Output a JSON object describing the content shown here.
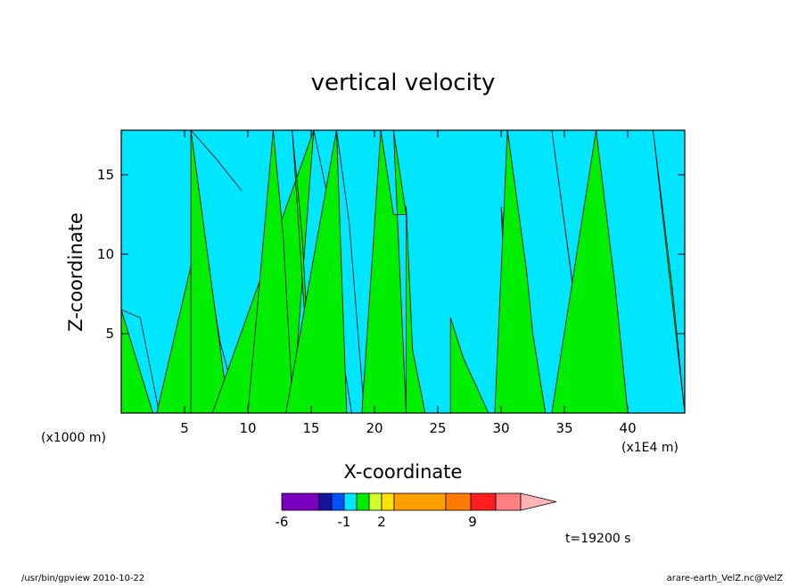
{
  "chart_data": {
    "type": "heatmap",
    "title": "vertical velocity",
    "xlabel": "X-coordinate",
    "ylabel": "Z-coordinate",
    "xlim": [
      0,
      44.5
    ],
    "ylim": [
      0,
      17.8
    ],
    "x_ticks": [
      5,
      10,
      15,
      20,
      25,
      30,
      35,
      40
    ],
    "y_ticks": [
      5,
      10,
      15
    ],
    "x_unit_left": "(x1000 m)",
    "x_unit_right": "(x1E4 m)",
    "time_label": "t=19200 s",
    "colorbar": {
      "colors": [
        "#7a00bf",
        "#1414a0",
        "#0050ff",
        "#00e6ff",
        "#00ee00",
        "#d2ff2a",
        "#ffe000",
        "#ffa000",
        "#ff7a00",
        "#ff1e1e",
        "#ff8080",
        "#ffb4b4"
      ],
      "tick_labels": [
        "-6",
        "-1",
        "2",
        "9"
      ]
    },
    "field_colors": {
      "updraft": "#00ee00",
      "downdraft": "#00e6ff"
    },
    "updraft_regions": [
      {
        "xs": [
          0.0,
          2.5
        ],
        "zs": [
          [
            0.0,
            6.5
          ],
          [
            1.5,
            6.0
          ],
          [
            3.0,
            0.0
          ]
        ]
      },
      {
        "xs": [
          2.8,
          6.5
        ],
        "zs": [
          [
            3.5,
            12.0
          ],
          [
            5.0,
            4.5
          ],
          [
            6.5,
            0.0
          ]
        ]
      },
      {
        "xs": [
          5.5,
          8.5
        ],
        "zs": [
          [
            0.0,
            17.8
          ],
          [
            2.0,
            16.0
          ],
          [
            4.0,
            14.0
          ]
        ]
      },
      {
        "xs": [
          7.2,
          13.5
        ],
        "zs": [
          [
            8.0,
            17.8
          ],
          [
            9.0,
            14.0
          ],
          [
            10.2,
            4.0
          ],
          [
            11.0,
            0.0
          ]
        ]
      },
      {
        "xs": [
          10.0,
          15.0
        ],
        "zs": [
          [
            2.0,
            17.8
          ],
          [
            2.8,
            11.0
          ],
          [
            3.5,
            1.0
          ]
        ]
      },
      {
        "xs": [
          13.0,
          17.8
        ],
        "zs": [
          [
            4.0,
            17.8
          ],
          [
            5.0,
            12.0
          ],
          [
            6.2,
            0.0
          ]
        ]
      },
      {
        "xs": [
          19.0,
          22.5
        ],
        "zs": [
          [
            1.5,
            17.8
          ],
          [
            2.5,
            12.5
          ]
        ]
      },
      {
        "xs": [
          22.5,
          31.5
        ],
        "zs": [
          [
            0.0,
            13.0
          ],
          [
            0.5,
            4.0
          ],
          [
            1.5,
            0.0
          ]
        ]
      },
      {
        "xs": [
          26.0,
          33.0
        ],
        "zs": [
          [
            0.0,
            6.0
          ],
          [
            1.0,
            3.5
          ],
          [
            3.0,
            0.0
          ]
        ]
      },
      {
        "xs": [
          29.5,
          37.0
        ],
        "zs": [
          [
            1.0,
            17.8
          ],
          [
            2.5,
            9.0
          ],
          [
            3.0,
            5.0
          ],
          [
            4.0,
            0.0
          ]
        ]
      },
      {
        "xs": [
          34.0,
          44.5
        ],
        "zs": [
          [
            3.5,
            17.8
          ],
          [
            5.0,
            8.0
          ],
          [
            6.0,
            0.0
          ]
        ]
      }
    ]
  },
  "footer": {
    "left": "/usr/bin/gpview   2010-10-22",
    "right": "arare-earth_VelZ.nc@VelZ"
  }
}
